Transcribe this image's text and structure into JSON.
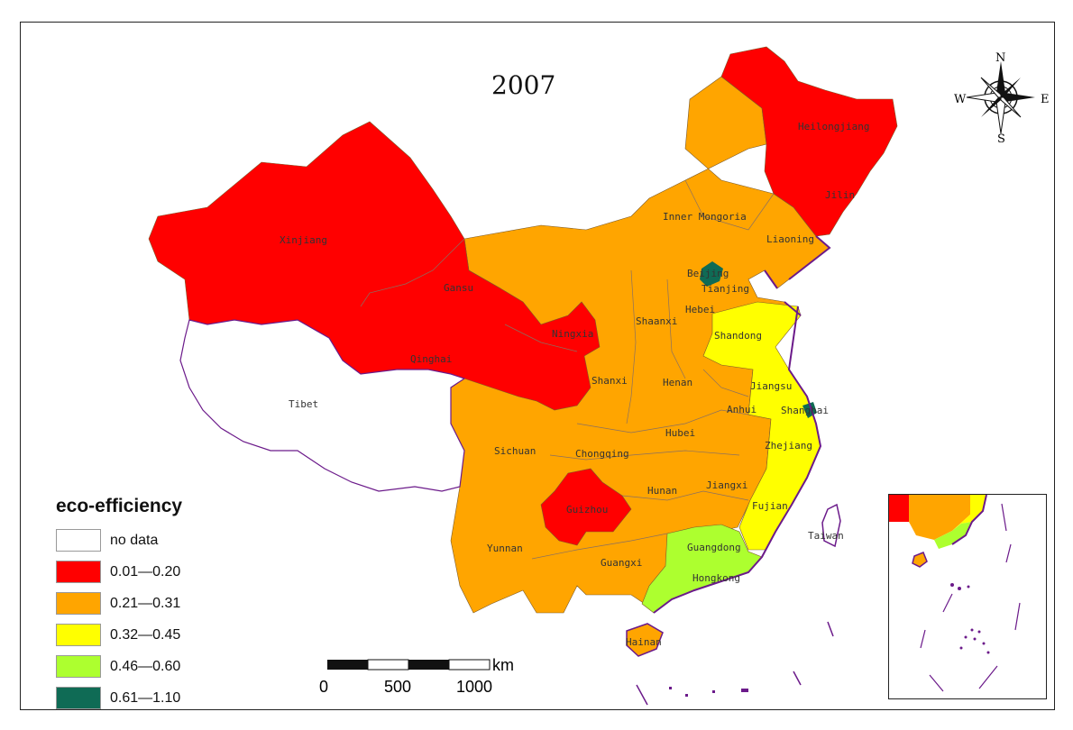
{
  "title": "2007",
  "legend": {
    "title": "eco-efficiency",
    "classes": [
      {
        "label": "no data",
        "color": "#ffffff"
      },
      {
        "label": "0.01—0.20",
        "color": "#ff0000"
      },
      {
        "label": "0.21—0.31",
        "color": "#ffa500"
      },
      {
        "label": "0.32—0.45",
        "color": "#ffff00"
      },
      {
        "label": "0.46—0.60",
        "color": "#adff2f"
      },
      {
        "label": "0.61—1.10",
        "color": "#0f6b55"
      }
    ]
  },
  "scale_bar": {
    "unit": "km",
    "ticks": [
      "0",
      "500",
      "1000"
    ]
  },
  "compass": {
    "n": "N",
    "s": "S",
    "e": "E",
    "w": "W"
  },
  "provinces": [
    {
      "name": "Xinjiang",
      "class": "0.01—0.20"
    },
    {
      "name": "Tibet",
      "class": "no data"
    },
    {
      "name": "Qinghai",
      "class": "0.01—0.20"
    },
    {
      "name": "Gansu",
      "class": "0.01—0.20"
    },
    {
      "name": "Ningxia",
      "class": "0.01—0.20"
    },
    {
      "name": "Inner Mongoria",
      "class": "0.21—0.31"
    },
    {
      "name": "Heilongjiang",
      "class": "0.01—0.20"
    },
    {
      "name": "Jilin",
      "class": "0.01—0.20"
    },
    {
      "name": "Liaoning",
      "class": "0.21—0.31"
    },
    {
      "name": "Beijing",
      "class": "0.61—1.10"
    },
    {
      "name": "Tianjing",
      "class": "0.21—0.31"
    },
    {
      "name": "Hebei",
      "class": "0.21—0.31"
    },
    {
      "name": "Shaanxi",
      "class": "0.21—0.31"
    },
    {
      "name": "Shanxi",
      "class": "0.21—0.31"
    },
    {
      "name": "Shandong",
      "class": "0.32—0.45"
    },
    {
      "name": "Henan",
      "class": "0.21—0.31"
    },
    {
      "name": "Jiangsu",
      "class": "0.32—0.45"
    },
    {
      "name": "Shanghai",
      "class": "0.61—1.10"
    },
    {
      "name": "Anhui",
      "class": "0.21—0.31"
    },
    {
      "name": "Hubei",
      "class": "0.21—0.31"
    },
    {
      "name": "Sichuan",
      "class": "0.21—0.31"
    },
    {
      "name": "Chongqing",
      "class": "0.21—0.31"
    },
    {
      "name": "Zhejiang",
      "class": "0.32—0.45"
    },
    {
      "name": "Hunan",
      "class": "0.21—0.31"
    },
    {
      "name": "Jiangxi",
      "class": "0.21—0.31"
    },
    {
      "name": "Guizhou",
      "class": "0.01—0.20"
    },
    {
      "name": "Fujian",
      "class": "0.32—0.45"
    },
    {
      "name": "Yunnan",
      "class": "0.21—0.31"
    },
    {
      "name": "Guangxi",
      "class": "0.21—0.31"
    },
    {
      "name": "Guangdong",
      "class": "0.46—0.60"
    },
    {
      "name": "Hongkong",
      "class": "0.46—0.60"
    },
    {
      "name": "Taiwan",
      "class": "no data"
    },
    {
      "name": "Hainan",
      "class": "0.21—0.31"
    }
  ]
}
